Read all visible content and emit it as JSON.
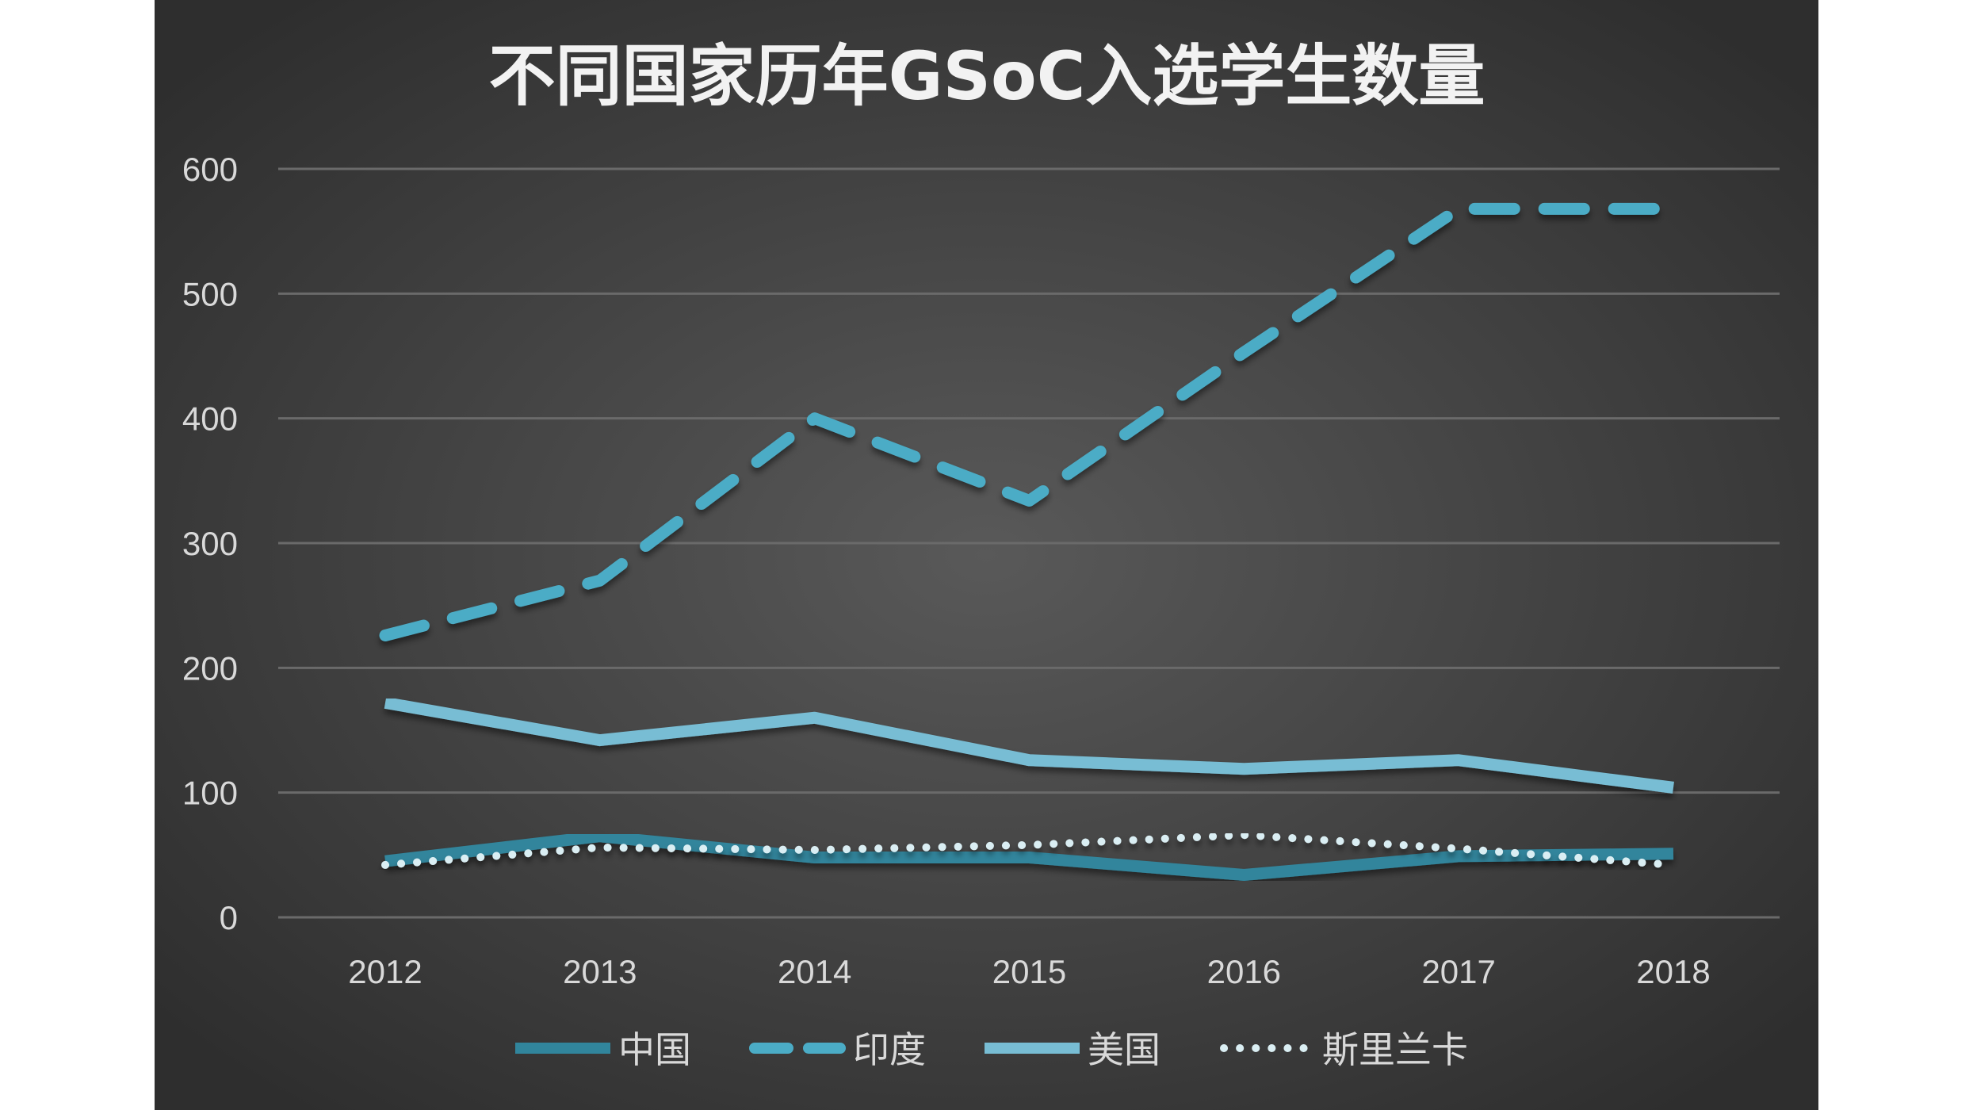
{
  "chart_data": {
    "type": "line",
    "title": "不同国家历年GSoC入选学生数量",
    "xlabel": "",
    "ylabel": "",
    "categories": [
      "2012",
      "2013",
      "2014",
      "2015",
      "2016",
      "2017",
      "2018"
    ],
    "ylim": [
      0,
      600
    ],
    "yticks": [
      0,
      100,
      200,
      300,
      400,
      500,
      600
    ],
    "grid": true,
    "legend_position": "bottom",
    "series": [
      {
        "name": "中国",
        "values": [
          45,
          65,
          48,
          48,
          34,
          49,
          51
        ],
        "color": "#31859c",
        "style": "solid"
      },
      {
        "name": "印度",
        "values": [
          226,
          270,
          400,
          334,
          453,
          568,
          568
        ],
        "color": "#4bacc6",
        "style": "dashed"
      },
      {
        "name": "美国",
        "values": [
          172,
          142,
          160,
          126,
          119,
          126,
          104
        ],
        "color": "#78bdd4",
        "style": "solid"
      },
      {
        "name": "斯里兰卡",
        "values": [
          42,
          56,
          54,
          58,
          66,
          55,
          42
        ],
        "color": "#daeef3",
        "style": "dotted"
      }
    ]
  }
}
